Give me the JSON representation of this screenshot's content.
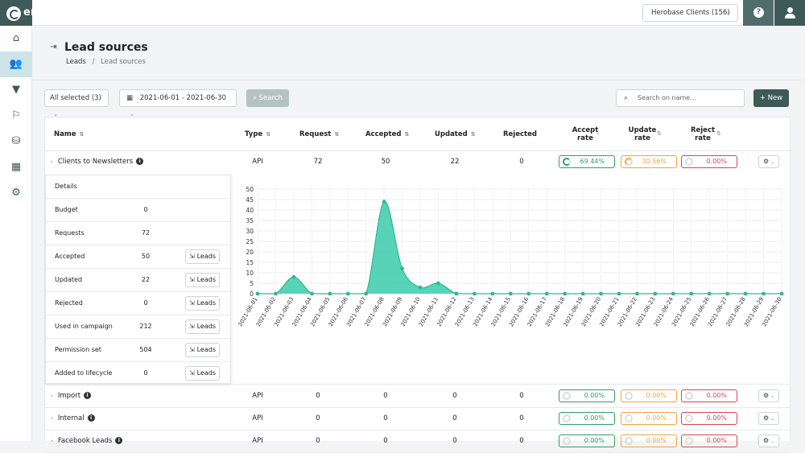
{
  "app": {
    "logo_text": "er",
    "client_selector": "Herobase Clients (156)"
  },
  "icons": {
    "logo": "emarsys-logo-icon",
    "help": "question-mark-icon",
    "user": "user-icon",
    "sidebar": [
      "home-icon",
      "people-icon",
      "filter-icon",
      "flag-icon",
      "coins-icon",
      "chart-icon",
      "settings-icon"
    ]
  },
  "page": {
    "title": "Lead sources",
    "breadcrumb": {
      "root": "Leads",
      "separator": "/",
      "current": "Lead sources"
    }
  },
  "filters": {
    "all_selected": "All selected (3)",
    "date_range": "2021-06-01 - 2021-06-30",
    "search_button": "Search",
    "search_placeholder": "Search on name...",
    "new_button": "New"
  },
  "table": {
    "columns": {
      "name": "Name",
      "type": "Type",
      "request": "Request",
      "accepted": "Accepted",
      "updated": "Updated",
      "rejected": "Rejected",
      "accept_rate_1": "Accept",
      "accept_rate_2": "rate",
      "update_rate_1": "Update",
      "update_rate_2": "rate",
      "reject_rate_1": "Reject",
      "reject_rate_2": "rate"
    },
    "rows": [
      {
        "name": "Clients to Newsletters",
        "type": "API",
        "request": "72",
        "accepted": "50",
        "updated": "22",
        "rejected": "0",
        "accept_rate": "69.44%",
        "update_rate": "30.56%",
        "reject_rate": "0.00%"
      },
      {
        "name": "Import",
        "type": "API",
        "request": "0",
        "accepted": "0",
        "updated": "0",
        "rejected": "0",
        "accept_rate": "0.00%",
        "update_rate": "0.00%",
        "reject_rate": "0.00%"
      },
      {
        "name": "Internal",
        "type": "API",
        "request": "0",
        "accepted": "0",
        "updated": "0",
        "rejected": "0",
        "accept_rate": "0.00%",
        "update_rate": "0.00%",
        "reject_rate": "0.00%"
      },
      {
        "name": "Facebook Leads",
        "type": "API",
        "request": "0",
        "accepted": "0",
        "updated": "0",
        "rejected": "0",
        "accept_rate": "0.00%",
        "update_rate": "0.00%",
        "reject_rate": "0.00%"
      }
    ]
  },
  "details": {
    "heading": "Details",
    "leads_label": "Leads",
    "rows": [
      {
        "label": "Budget",
        "value": "0",
        "has_leads": false
      },
      {
        "label": "Requests",
        "value": "72",
        "has_leads": false
      },
      {
        "label": "Accepted",
        "value": "50",
        "has_leads": true
      },
      {
        "label": "Updated",
        "value": "22",
        "has_leads": true
      },
      {
        "label": "Rejected",
        "value": "0",
        "has_leads": true
      },
      {
        "label": "Used in campaign",
        "value": "212",
        "has_leads": true
      },
      {
        "label": "Permission set",
        "value": "504",
        "has_leads": true
      },
      {
        "label": "Added to lifecycle",
        "value": "0",
        "has_leads": true
      }
    ]
  },
  "chart_data": {
    "type": "area",
    "title": "",
    "xlabel": "",
    "ylabel": "",
    "ylim": [
      0,
      50
    ],
    "yticks": [
      0,
      5,
      10,
      15,
      20,
      25,
      30,
      35,
      40,
      45,
      50
    ],
    "x": [
      "2021-06-01",
      "2021-06-02",
      "2021-06-03",
      "2021-06-04",
      "2021-06-05",
      "2021-06-06",
      "2021-06-07",
      "2021-06-08",
      "2021-06-09",
      "2021-06-10",
      "2021-06-11",
      "2021-06-12",
      "2021-06-13",
      "2021-06-14",
      "2021-06-15",
      "2021-06-16",
      "2021-06-17",
      "2021-06-18",
      "2021-06-19",
      "2021-06-20",
      "2021-06-21",
      "2021-06-22",
      "2021-06-23",
      "2021-06-24",
      "2021-06-25",
      "2021-06-26",
      "2021-06-27",
      "2021-06-28",
      "2021-06-29",
      "2021-06-30"
    ],
    "values": [
      0,
      0,
      8,
      0,
      0,
      0,
      0,
      44,
      12,
      3,
      5,
      0,
      0,
      0,
      0,
      0,
      0,
      0,
      0,
      0,
      0,
      0,
      0,
      0,
      0,
      0,
      0,
      0,
      0,
      0
    ],
    "color": "#3ccbaa",
    "grid": true
  }
}
